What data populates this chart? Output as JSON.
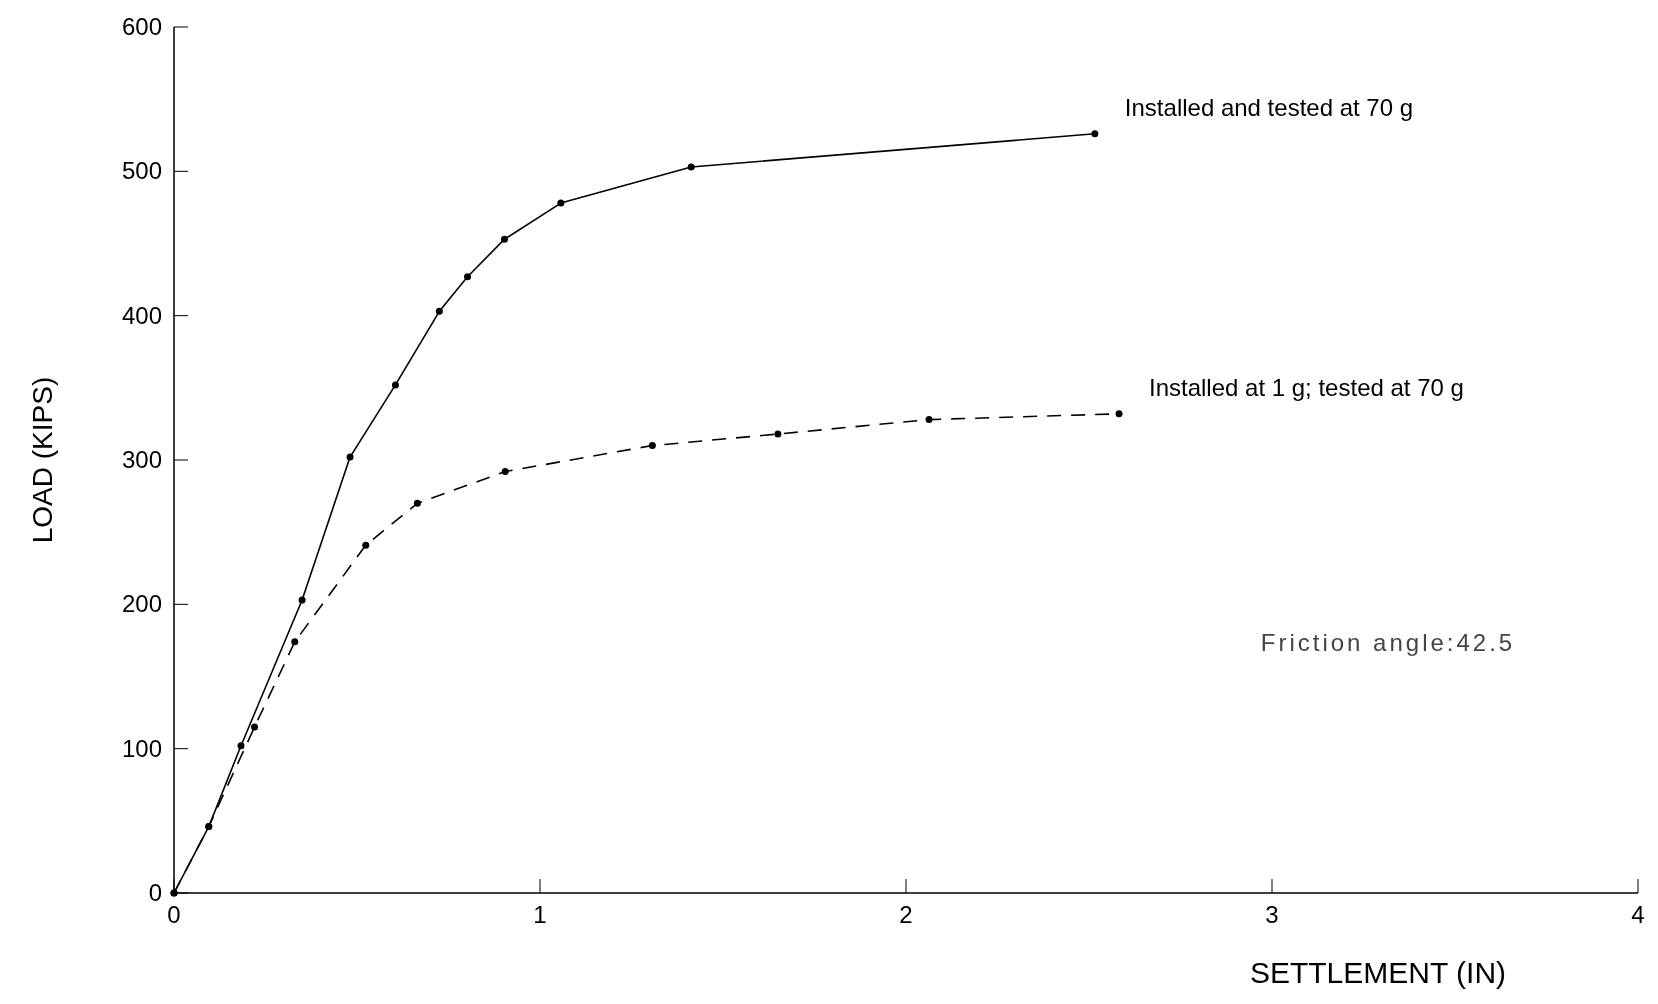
{
  "chart_data": {
    "type": "line",
    "xlabel": "SETTLEMENT (IN)",
    "ylabel": "LOAD (KIPS)",
    "xlim": [
      0,
      4
    ],
    "xticks": [
      0,
      1,
      2,
      3,
      4
    ],
    "ylim": [
      0,
      600
    ],
    "yticks": [
      0,
      100,
      200,
      300,
      400,
      500,
      600
    ],
    "grid": false,
    "marker": "circle",
    "series": [
      {
        "name": "Installed and tested at 70 g",
        "color": "#000000",
        "line_style": "solid",
        "x": [
          0,
          0.095,
          0.183,
          0.35,
          0.481,
          0.605,
          0.725,
          0.802,
          0.903,
          1.057,
          1.413,
          2.516
        ],
        "values": [
          0,
          46,
          102,
          203,
          302,
          352,
          403,
          427,
          453,
          478,
          503,
          526
        ]
      },
      {
        "name": "Installed at 1 g; tested at 70 g",
        "color": "#000000",
        "line_style": "dashed",
        "x": [
          0,
          0.095,
          0.22,
          0.33,
          0.524,
          0.665,
          0.905,
          1.307,
          1.65,
          2.063,
          2.582
        ],
        "values": [
          0,
          46,
          115,
          174,
          241,
          270,
          292,
          310,
          318,
          328,
          332
        ]
      }
    ],
    "annotations": [
      "Friction angle:42.5"
    ]
  }
}
